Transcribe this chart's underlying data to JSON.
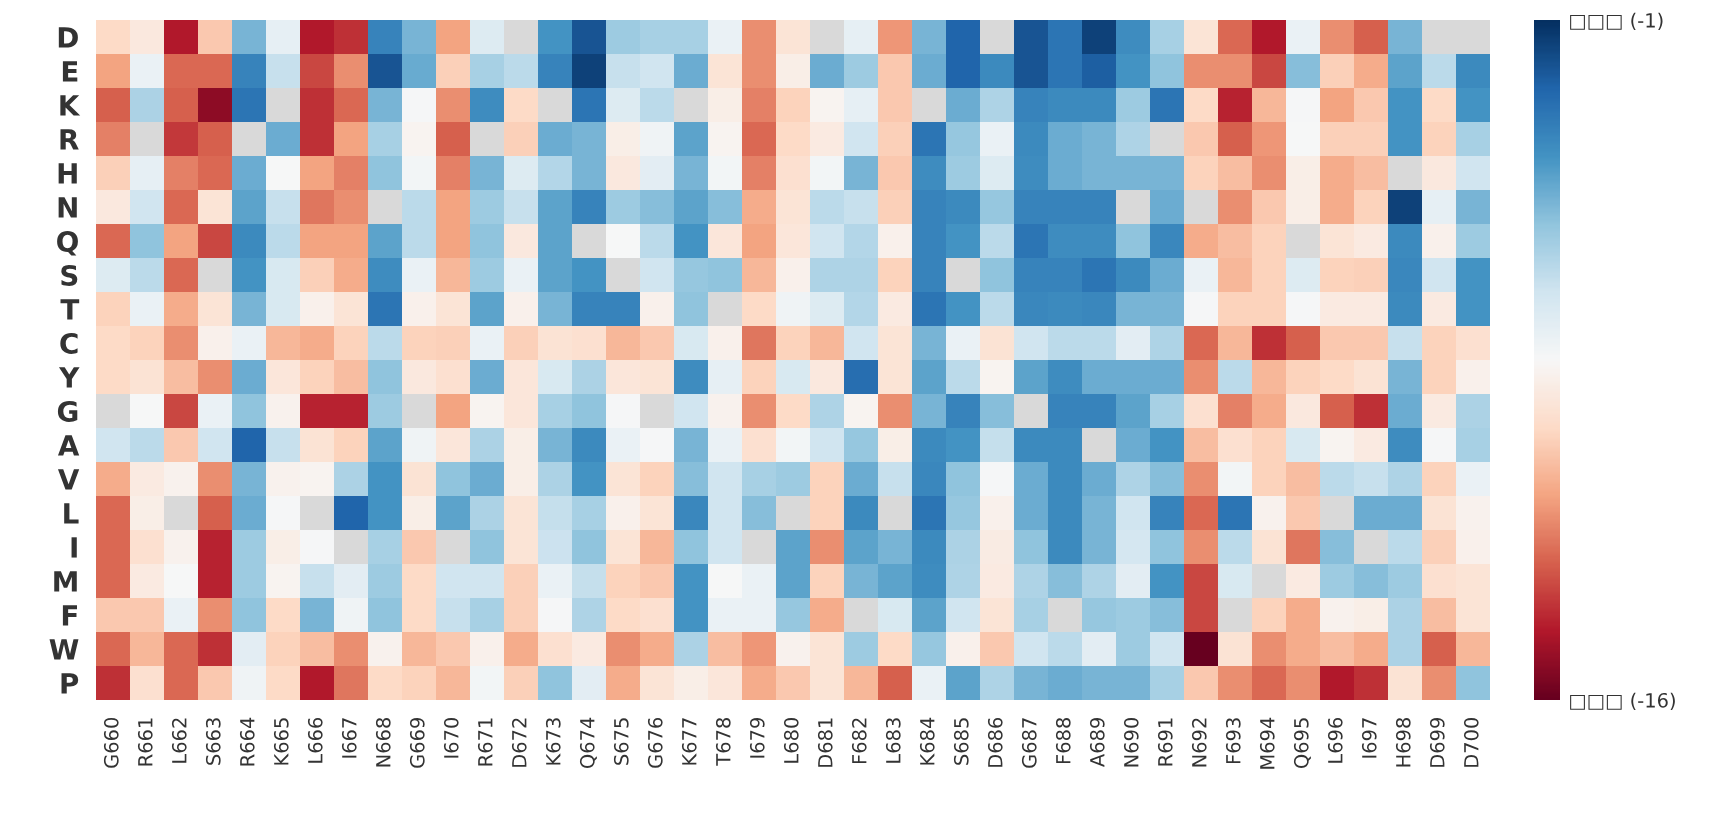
{
  "chart_data": {
    "type": "heatmap",
    "categories": [
      "G660",
      "R661",
      "L662",
      "S663",
      "R664",
      "K665",
      "L666",
      "I667",
      "N668",
      "G669",
      "I670",
      "R671",
      "D672",
      "K673",
      "Q674",
      "S675",
      "G676",
      "K677",
      "T678",
      "I679",
      "L680",
      "D681",
      "F682",
      "L683",
      "K684",
      "S685",
      "D686",
      "G687",
      "F688",
      "A689",
      "N690",
      "R691",
      "N692",
      "F693",
      "M694",
      "Q695",
      "L696",
      "I697",
      "H698",
      "D699",
      "D700"
    ],
    "y_categories": [
      "D",
      "E",
      "K",
      "R",
      "H",
      "N",
      "Q",
      "S",
      "T",
      "C",
      "Y",
      "G",
      "A",
      "V",
      "L",
      "I",
      "M",
      "F",
      "W",
      "P"
    ],
    "cells": [
      [
        -10,
        -9.3,
        -14.5,
        -10.5,
        -5,
        -7.8,
        -14.5,
        -14,
        -3.5,
        -5,
        -11.5,
        -7.5,
        null,
        -4,
        -2,
        -5.8,
        -6,
        -6,
        -8,
        -12,
        -9.5,
        null,
        -7.8,
        -11.8,
        -5,
        -2.5,
        null,
        -2,
        -3,
        -1.5,
        -3.8,
        -6,
        -9.5,
        -12.8,
        -14.5,
        -8,
        -12,
        -13,
        -5,
        null,
        null
      ],
      [
        -11.5,
        -8,
        -12.8,
        -12.8,
        -3.5,
        -6.8,
        -13.5,
        -12,
        -2,
        -4.7,
        -10.3,
        -6,
        -6.5,
        -3.5,
        -1.5,
        -6.8,
        -7,
        -4.8,
        -9.5,
        -12,
        -9,
        -4.8,
        -5.8,
        -10.5,
        -4.8,
        -2.5,
        -3.7,
        -2,
        -3,
        -2.3,
        -4,
        -5.5,
        -12,
        -12,
        -13.5,
        -5.3,
        -10.3,
        -11.3,
        -4.5,
        -6.5,
        -3.7
      ],
      [
        -13,
        -6.1,
        -13,
        -15.2,
        -3,
        null,
        -14,
        -12.8,
        -5,
        -8.4,
        -12,
        -3.8,
        -10,
        null,
        -3,
        -7.5,
        -6.5,
        null,
        -9,
        -12.3,
        -10.2,
        -8.7,
        -7.8,
        -10.5,
        null,
        -4.8,
        -6.2,
        -3.5,
        -3.7,
        -3.7,
        -5.8,
        -3,
        -10,
        -14.3,
        -11,
        -8.4,
        -11.5,
        -10.5,
        -4,
        -10,
        -4
      ],
      [
        -12.3,
        null,
        -13.8,
        -13,
        null,
        -4.8,
        -14,
        -11.5,
        -6,
        -8.7,
        -13,
        null,
        -10.3,
        -4.8,
        -5,
        -9,
        -8.2,
        -4.5,
        -8.7,
        -12.8,
        -10,
        -9.2,
        -7,
        -10.3,
        -3,
        -5.6,
        -8,
        -3.7,
        -4.8,
        -5,
        -6.2,
        null,
        -10.5,
        -13,
        -11.8,
        -8.5,
        -10.3,
        -10.3,
        -4,
        -10.2,
        -6
      ],
      [
        -10.3,
        -7.8,
        -12.3,
        -12.8,
        -4.8,
        -8.5,
        -11.5,
        -12.3,
        -5.5,
        -8.3,
        -12.3,
        -5,
        -7.5,
        -6.3,
        -5,
        -9.3,
        -7.7,
        -5,
        -8.3,
        -12.3,
        -9.7,
        -8.3,
        -5,
        -10.5,
        -3.8,
        -5.8,
        -7.5,
        -3.8,
        -4.8,
        -5,
        -5,
        -5,
        -10.2,
        -10.8,
        -12,
        -9,
        -11.3,
        -10.8,
        null,
        -9.3,
        -7
      ],
      [
        -9.3,
        -7,
        -12.8,
        -9.5,
        -4.5,
        -6.8,
        -12.5,
        -12,
        null,
        -6.5,
        -11.5,
        -5.8,
        -6.8,
        -4.5,
        -3.5,
        -5.8,
        -5.3,
        -4.5,
        -5.3,
        -11.3,
        -9.5,
        -6.5,
        -6.8,
        -10.3,
        -3.5,
        -3.7,
        -5.6,
        -3.5,
        -3.5,
        -3.5,
        null,
        -4.8,
        null,
        -12,
        -10.5,
        -9,
        -11.3,
        -10.2,
        -1.5,
        -7.8,
        -5
      ],
      [
        -12.8,
        -5.5,
        -11.5,
        -13.5,
        -3.7,
        -6.5,
        -11.5,
        -11.5,
        -4.5,
        -6.5,
        -11.5,
        -5.5,
        -9.3,
        -4.5,
        null,
        -8.5,
        -6.5,
        -4,
        -9.4,
        -11.5,
        -9.4,
        -7,
        -6.3,
        -8.9,
        -3.5,
        -4,
        -6.5,
        -3,
        -3.8,
        -3.8,
        -5.5,
        -3.6,
        -11.3,
        -10.8,
        -10.2,
        null,
        -9.5,
        -9.2,
        -3.7,
        -8.9,
        -5.8
      ],
      [
        -7.5,
        -6.5,
        -12.8,
        null,
        -4,
        -7.3,
        -10.3,
        -11.3,
        -3.8,
        -8,
        -11,
        -5.8,
        -8,
        -4.5,
        -4,
        null,
        -7,
        -5.6,
        -5.5,
        -11,
        -8.9,
        -6.2,
        -6.2,
        -10.2,
        -3.5,
        null,
        -5.5,
        -3.5,
        -3.5,
        -3,
        -3.7,
        -4.8,
        -8,
        -11,
        -10.2,
        -7.5,
        -10.2,
        -10.3,
        -3.6,
        -7,
        -4
      ],
      [
        -10.2,
        -8,
        -11.3,
        -9.5,
        -5,
        -7.3,
        -8.9,
        -9.5,
        -3,
        -8.9,
        -9.5,
        -4.5,
        -8.9,
        -5,
        -3.5,
        -3.5,
        -8.9,
        -5.5,
        null,
        -10,
        -8.2,
        -7.5,
        -6.3,
        -9.2,
        -3,
        -4,
        -6.5,
        -3.6,
        -3.7,
        -3.6,
        -5,
        -5,
        -8.4,
        -10.2,
        -10.2,
        -8.4,
        -9.2,
        -9.2,
        -3.7,
        -9.2,
        -4
      ],
      [
        -10,
        -10.2,
        -12,
        -8.9,
        -8,
        -11,
        -11.3,
        -10.2,
        -6.5,
        -10.2,
        -10.3,
        -8,
        -10.3,
        -9.6,
        -9.7,
        -11,
        -10.5,
        -7.3,
        -8.9,
        -12.5,
        -10.2,
        -11,
        -7,
        -9.5,
        -5,
        -8,
        -9.6,
        -7,
        -6.5,
        -6.5,
        -7.7,
        -6.2,
        -12.8,
        -11,
        -14,
        -13,
        -10.5,
        -10.5,
        -6.8,
        -10.2,
        -9.7
      ],
      [
        -10,
        -9.6,
        -10.8,
        -12,
        -4.8,
        -9.4,
        -10.2,
        -10.8,
        -5.5,
        -9.3,
        -9.7,
        -4.8,
        -9.4,
        -7.3,
        -6.1,
        -9.4,
        -9.5,
        -3.8,
        -7.8,
        -10.2,
        -7.3,
        -9.3,
        -2.8,
        -9.5,
        -4.5,
        -6.5,
        -8.7,
        -4.5,
        -3.8,
        -4.8,
        -4.8,
        -4.8,
        -12,
        -6.5,
        -11,
        -10.2,
        -10,
        -9.6,
        -5,
        -10.2,
        -8.9
      ],
      [
        null,
        -8.5,
        -13.5,
        -8,
        -5.5,
        -8.8,
        -14.3,
        -14.3,
        -5.8,
        null,
        -11.5,
        -8.7,
        -9.4,
        -6,
        -5.5,
        -8.4,
        null,
        -7,
        -8.8,
        -12,
        -10,
        -6.2,
        -8.7,
        -12,
        -5,
        -3.5,
        -5.3,
        null,
        -3.5,
        -3.5,
        -4.5,
        -6,
        -9.7,
        -12.3,
        -11.3,
        -9.3,
        -13,
        -14,
        -4.8,
        -9.2,
        -6.1
      ],
      [
        -7,
        -6.5,
        -10.5,
        -7,
        -2.5,
        -6.8,
        -9.6,
        -10.2,
        -4.5,
        -8.2,
        -9.4,
        -6.1,
        -9,
        -5,
        -3.7,
        -8,
        -8.4,
        -5,
        -8,
        -9.7,
        -8.3,
        -7,
        -5.6,
        -9,
        -3.7,
        -4,
        -6.7,
        -3.7,
        -3.7,
        null,
        -4.8,
        -4,
        -10.8,
        -9.7,
        -10.2,
        -7.3,
        -8.7,
        -9.2,
        -3.8,
        -8.4,
        -6
      ],
      [
        -11.3,
        -9.2,
        -8.8,
        -12,
        -5,
        -8.8,
        -8.7,
        -6.1,
        -4,
        -9.6,
        -5.5,
        -4.8,
        -9,
        -6.1,
        -4,
        -9.5,
        -10.2,
        -5.3,
        -7,
        -6,
        -5.8,
        -10.2,
        -4.8,
        -6.8,
        -3.6,
        -5.5,
        -8.4,
        -4.8,
        -3.7,
        -4.8,
        -6.2,
        -5.3,
        -12,
        -8.3,
        -10.2,
        -10.8,
        -6.5,
        -6.8,
        -6.2,
        -10.2,
        -8
      ],
      [
        -12.8,
        -9,
        null,
        -13,
        -4.8,
        -8.4,
        null,
        -2.5,
        -4,
        -9,
        -4.5,
        -6.1,
        -9.5,
        -6.7,
        -6,
        -8.9,
        -9.5,
        -3.6,
        -7,
        -5.3,
        null,
        -10.2,
        -3.7,
        null,
        -3,
        -5.6,
        -8.9,
        -4.8,
        -3.7,
        -5,
        -7,
        -3.5,
        -12.8,
        -3,
        -8.8,
        -10.5,
        null,
        -4.8,
        -4.8,
        -9.6,
        -8.8
      ],
      [
        -12.8,
        -9.7,
        -8.8,
        -14.3,
        -5.8,
        -9,
        -8.4,
        null,
        -6,
        -10.5,
        null,
        -5.5,
        -9.5,
        -6.9,
        -5.5,
        -9.5,
        -11,
        -5.5,
        -7,
        null,
        -4.5,
        -12,
        -4.5,
        -5,
        -3.7,
        -6.1,
        -9.1,
        -5.5,
        -3.7,
        -5,
        -7.2,
        -5.5,
        -12,
        -6.5,
        -9.6,
        -12.5,
        -5.3,
        null,
        -6.5,
        -10.3,
        -8.9
      ],
      [
        -12.8,
        -9.2,
        -8.5,
        -14.3,
        -5.8,
        -8.7,
        -6.8,
        -7.7,
        -5.8,
        -10,
        -7,
        -7,
        -10.3,
        -8,
        -6.7,
        -10.2,
        -10.5,
        -4,
        -8.5,
        -8,
        -4.5,
        -10.2,
        -5,
        -4.5,
        -3.8,
        -6.2,
        -9.2,
        -6.2,
        -5.3,
        -6.2,
        -7.7,
        -4,
        -13.5,
        -7.3,
        null,
        -9.2,
        -5.8,
        -5.3,
        -5.8,
        -9.7,
        -9.5
      ],
      [
        -10.5,
        -10.5,
        -8,
        -12,
        -5.5,
        -10,
        -5,
        -8.2,
        -5.5,
        -10,
        -6.8,
        -6,
        -10.3,
        -8.4,
        -6.2,
        -10,
        -9.7,
        -4,
        -8,
        -8,
        -5.6,
        -11.3,
        null,
        -7.3,
        -4.5,
        -7,
        -9.5,
        -6,
        null,
        -5.6,
        -5.8,
        -5.3,
        -13.5,
        null,
        -10.2,
        -11.3,
        -8.8,
        -9,
        -6.1,
        -10.8,
        -9.5
      ],
      [
        -12.8,
        -11,
        -12.8,
        -14,
        -7.7,
        -10.2,
        -10.8,
        -12,
        -8.8,
        -11,
        -10.5,
        -8.9,
        -11.3,
        -9.7,
        -9.2,
        -12,
        -11.3,
        -6.1,
        -10.8,
        -11.8,
        -8.8,
        -9.5,
        -5.8,
        -10,
        -5.6,
        -8.9,
        -10.5,
        -7,
        -6.5,
        -7.7,
        -5.8,
        -7,
        -16,
        -9.6,
        -12,
        -11.3,
        -10.8,
        -11.3,
        -6.1,
        -13,
        -11
      ],
      [
        -14,
        -9.7,
        -12.8,
        -10.5,
        -8.2,
        -10,
        -14.5,
        -12.5,
        -10,
        -10.2,
        -11,
        -8.3,
        -10.3,
        -5.5,
        -7.7,
        -11.3,
        -9.5,
        -9,
        -9.4,
        -11.3,
        -10.5,
        -9.5,
        -11,
        -13,
        -8,
        -4.5,
        -6.2,
        -5,
        -4.8,
        -5,
        -5,
        -6,
        -10.5,
        -12,
        -12.8,
        -12,
        -14.5,
        -14,
        -9.6,
        -12,
        -5.5
      ]
    ],
    "clim": [
      -16,
      -1
    ],
    "cticks": [
      {
        "value": -1,
        "label": "□□□ (-1)"
      },
      {
        "value": -16,
        "label": "□□□ (-16)"
      }
    ]
  }
}
